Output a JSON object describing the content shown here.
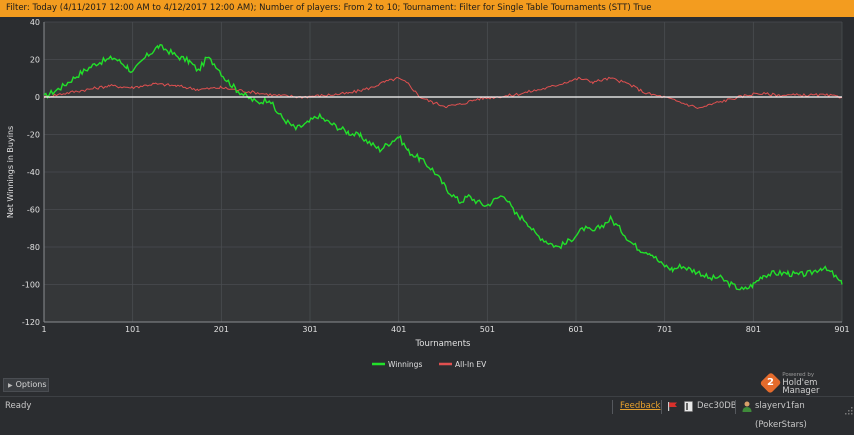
{
  "filter_text": "Filter: Today (4/11/2017 12:00 AM to 4/12/2017 12:00 AM); Number of players: From 2 to 10; Tournament: Filter for Single Table Tournaments (STT) True",
  "options_label": "Options",
  "brand": {
    "powered_by": "Powered by",
    "name": "Hold'em Manager",
    "logo_glyph": "2",
    "logo_color": "#e46b2c"
  },
  "status": {
    "ready": "Ready",
    "feedback": "Feedback",
    "database": "Dec30DB",
    "user": "slayerv1fan (PokerStars)",
    "icons": [
      "flag-icon",
      "database-icon",
      "user-icon"
    ]
  },
  "colors": {
    "filter_bg": "#f39c1f",
    "winnings": "#22e02a",
    "allin_ev": "#e05050",
    "zero_line": "#ffffff"
  },
  "chart_data": {
    "type": "line",
    "xlabel": "Tournaments",
    "ylabel": "Net Winnings in Buyins",
    "xlim": [
      1,
      901
    ],
    "ylim": [
      -120,
      40
    ],
    "xticks": [
      "1",
      "101",
      "201",
      "301",
      "401",
      "501",
      "601",
      "701",
      "801",
      "901"
    ],
    "yticks": [
      "40",
      "20",
      "0",
      "-20",
      "-40",
      "-60",
      "-80",
      "-100",
      "-120"
    ],
    "grid": true,
    "legend_position": "bottom-center",
    "series": [
      {
        "name": "Winnings",
        "color": "#22e02a",
        "points": [
          [
            1,
            0
          ],
          [
            20,
            5
          ],
          [
            40,
            12
          ],
          [
            60,
            18
          ],
          [
            80,
            21
          ],
          [
            95,
            16
          ],
          [
            101,
            13
          ],
          [
            115,
            21
          ],
          [
            130,
            27
          ],
          [
            140,
            25
          ],
          [
            150,
            22
          ],
          [
            165,
            19
          ],
          [
            175,
            14
          ],
          [
            185,
            21
          ],
          [
            195,
            17
          ],
          [
            205,
            10
          ],
          [
            218,
            4
          ],
          [
            230,
            0
          ],
          [
            242,
            -3
          ],
          [
            255,
            -1
          ],
          [
            262,
            -7
          ],
          [
            272,
            -12
          ],
          [
            285,
            -17
          ],
          [
            298,
            -14
          ],
          [
            310,
            -10
          ],
          [
            320,
            -13
          ],
          [
            332,
            -16
          ],
          [
            345,
            -19
          ],
          [
            358,
            -21
          ],
          [
            370,
            -25
          ],
          [
            380,
            -28
          ],
          [
            392,
            -24
          ],
          [
            401,
            -21
          ],
          [
            412,
            -29
          ],
          [
            425,
            -33
          ],
          [
            440,
            -39
          ],
          [
            455,
            -49
          ],
          [
            470,
            -56
          ],
          [
            480,
            -53
          ],
          [
            490,
            -56
          ],
          [
            500,
            -58
          ],
          [
            512,
            -54
          ],
          [
            520,
            -52
          ],
          [
            532,
            -62
          ],
          [
            545,
            -66
          ],
          [
            555,
            -73
          ],
          [
            568,
            -77
          ],
          [
            580,
            -80
          ],
          [
            590,
            -78
          ],
          [
            600,
            -74
          ],
          [
            610,
            -70
          ],
          [
            620,
            -72
          ],
          [
            632,
            -68
          ],
          [
            640,
            -65
          ],
          [
            652,
            -71
          ],
          [
            662,
            -77
          ],
          [
            672,
            -81
          ],
          [
            685,
            -83
          ],
          [
            697,
            -89
          ],
          [
            710,
            -92
          ],
          [
            720,
            -90
          ],
          [
            730,
            -92
          ],
          [
            742,
            -94
          ],
          [
            752,
            -97
          ],
          [
            762,
            -96
          ],
          [
            772,
            -99
          ],
          [
            780,
            -101
          ],
          [
            790,
            -103
          ],
          [
            801,
            -100
          ],
          [
            812,
            -95
          ],
          [
            825,
            -94
          ],
          [
            840,
            -94
          ],
          [
            852,
            -95
          ],
          [
            865,
            -94
          ],
          [
            878,
            -91
          ],
          [
            890,
            -94
          ],
          [
            901,
            -100
          ]
        ]
      },
      {
        "name": "All-In EV",
        "color": "#e05050",
        "points": [
          [
            1,
            0
          ],
          [
            25,
            2
          ],
          [
            50,
            4
          ],
          [
            75,
            6
          ],
          [
            100,
            5
          ],
          [
            125,
            7
          ],
          [
            150,
            6
          ],
          [
            175,
            4
          ],
          [
            200,
            5
          ],
          [
            230,
            3
          ],
          [
            260,
            1
          ],
          [
            290,
            0
          ],
          [
            320,
            1
          ],
          [
            345,
            2
          ],
          [
            370,
            5
          ],
          [
            385,
            8
          ],
          [
            400,
            10
          ],
          [
            412,
            7
          ],
          [
            425,
            0
          ],
          [
            440,
            -3
          ],
          [
            455,
            -5
          ],
          [
            470,
            -4
          ],
          [
            490,
            -1
          ],
          [
            510,
            0
          ],
          [
            530,
            1
          ],
          [
            550,
            3
          ],
          [
            570,
            5
          ],
          [
            590,
            8
          ],
          [
            605,
            10
          ],
          [
            620,
            8
          ],
          [
            640,
            10
          ],
          [
            660,
            7
          ],
          [
            680,
            2
          ],
          [
            700,
            0
          ],
          [
            720,
            -3
          ],
          [
            740,
            -6
          ],
          [
            760,
            -3
          ],
          [
            785,
            0
          ],
          [
            805,
            2
          ],
          [
            830,
            1
          ],
          [
            860,
            1
          ],
          [
            880,
            1
          ],
          [
            901,
            0
          ]
        ]
      }
    ]
  }
}
